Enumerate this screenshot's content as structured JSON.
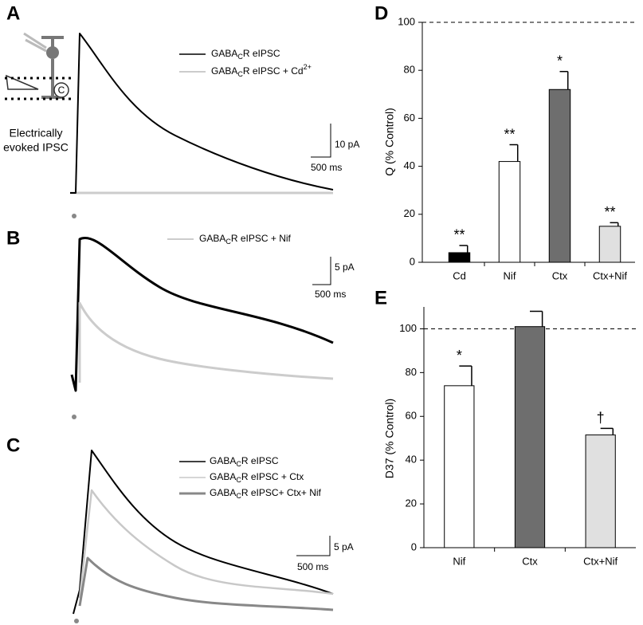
{
  "trace_panels": {
    "A": {
      "label": "A",
      "legend": [
        [
          "GABA",
          "C",
          "R eIPSC"
        ],
        [
          "GABA",
          "C",
          "R eIPSC + Cd",
          "2+"
        ]
      ],
      "scale_y": "10 pA",
      "scale_x": "500 ms",
      "inset_label": [
        "Electrically",
        "evoked IPSC"
      ]
    },
    "B": {
      "label": "B",
      "legend": [
        [
          "GABA",
          "C",
          "R eIPSC + Nif"
        ]
      ],
      "scale_y": "5 pA",
      "scale_x": "500 ms"
    },
    "C": {
      "label": "C",
      "legend": [
        [
          "GABA",
          "C",
          "R eIPSC"
        ],
        [
          "GABA",
          "C",
          "R eIPSC + Ctx"
        ],
        [
          "GABA",
          "C",
          "R eIPSC+ Ctx+ Nif"
        ]
      ],
      "scale_y": "5 pA",
      "scale_x": "500 ms"
    }
  },
  "chart_data": [
    {
      "type": "bar",
      "panel_label": "D",
      "y_label": "Q (% Control)",
      "categories": [
        "Cd",
        "Nif",
        "Ctx",
        "Ctx+Nif"
      ],
      "values": [
        4,
        42,
        72,
        15
      ],
      "errors": [
        3,
        7,
        7.5,
        1.5
      ],
      "annotations": [
        "**",
        "**",
        "*",
        "**"
      ],
      "colors": [
        "#000000",
        "#ffffff",
        "#6e6e6e",
        "#e0e0e0"
      ],
      "ylim": [
        0,
        100
      ],
      "yticks": [
        0,
        20,
        40,
        60,
        80,
        100
      ],
      "reference_line": 100
    },
    {
      "type": "bar",
      "panel_label": "E",
      "y_label": "D37  (% Control)",
      "categories": [
        "Nif",
        "Ctx",
        "Ctx+Nif"
      ],
      "values": [
        74,
        101,
        51.5
      ],
      "errors": [
        9,
        7,
        3
      ],
      "annotations": [
        "*",
        null,
        "†"
      ],
      "colors": [
        "#ffffff",
        "#6e6e6e",
        "#e0e0e0"
      ],
      "ylim": [
        0,
        110
      ],
      "yticks": [
        0,
        20,
        40,
        60,
        80,
        100
      ],
      "reference_line": 100
    }
  ]
}
